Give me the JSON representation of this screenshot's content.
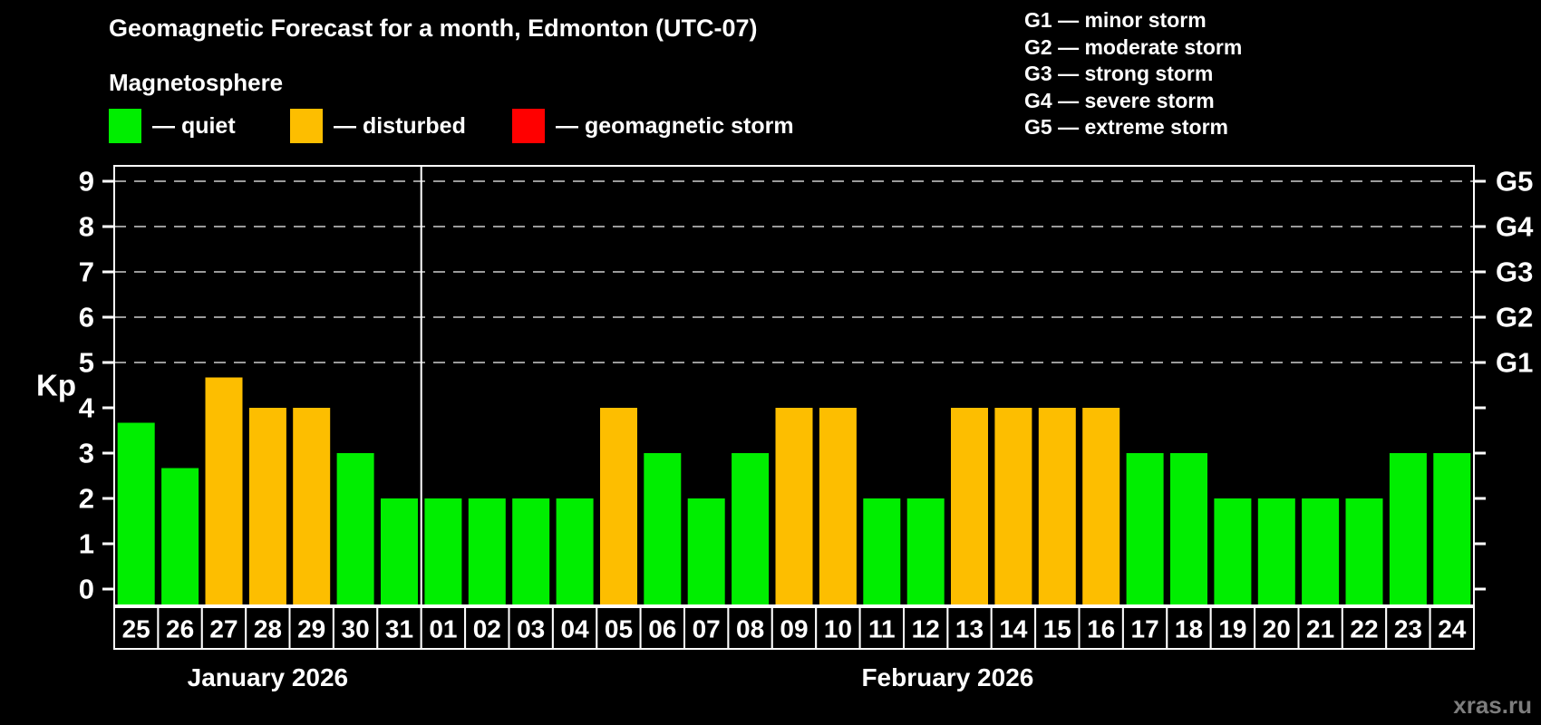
{
  "title": "Geomagnetic Forecast for a month, Edmonton (UTC-07)",
  "subtitle": "Magnetosphere",
  "legend": {
    "items": [
      {
        "name": "quiet",
        "label": "— quiet",
        "color": "#00EE00"
      },
      {
        "name": "disturbed",
        "label": "— disturbed",
        "color": "#FDBE00"
      },
      {
        "name": "storm",
        "label": "— geomagnetic storm",
        "color": "#FF0000"
      }
    ]
  },
  "g_scale_legend": {
    "lines": [
      "G1 — minor storm",
      "G2 — moderate storm",
      "G3 — strong storm",
      "G4 — severe storm",
      "G5 — extreme storm"
    ]
  },
  "watermark": "xras.ru",
  "chart_data": {
    "type": "bar",
    "title": "Geomagnetic Forecast for a month, Edmonton (UTC-07)",
    "ylabel": "Kp",
    "ylim": [
      -0.36,
      9.34
    ],
    "y_ticks": [
      0,
      1,
      2,
      3,
      4,
      5,
      6,
      7,
      8,
      9
    ],
    "grid": "horizontal dashed lines at Kp 5-9 only",
    "grid_levels": [
      5,
      6,
      7,
      8,
      9
    ],
    "legend_position": "top-left",
    "right_axis_labels": [
      {
        "kp": 5,
        "label": "G1"
      },
      {
        "kp": 6,
        "label": "G2"
      },
      {
        "kp": 7,
        "label": "G3"
      },
      {
        "kp": 8,
        "label": "G4"
      },
      {
        "kp": 9,
        "label": "G5"
      }
    ],
    "status_colors": {
      "quiet": "#00EE00",
      "disturbed": "#FDBE00",
      "storm": "#FF0000"
    },
    "months": [
      {
        "label": "January 2026",
        "days": 7
      },
      {
        "label": "February 2026",
        "days": 24
      }
    ],
    "bars": [
      {
        "month": "January",
        "day": "25",
        "kp": 3.67,
        "status": "quiet"
      },
      {
        "month": "January",
        "day": "26",
        "kp": 2.67,
        "status": "quiet"
      },
      {
        "month": "January",
        "day": "27",
        "kp": 4.67,
        "status": "disturbed"
      },
      {
        "month": "January",
        "day": "28",
        "kp": 4,
        "status": "disturbed"
      },
      {
        "month": "January",
        "day": "29",
        "kp": 4,
        "status": "disturbed"
      },
      {
        "month": "January",
        "day": "30",
        "kp": 3,
        "status": "quiet"
      },
      {
        "month": "January",
        "day": "31",
        "kp": 2,
        "status": "quiet"
      },
      {
        "month": "February",
        "day": "01",
        "kp": 2,
        "status": "quiet"
      },
      {
        "month": "February",
        "day": "02",
        "kp": 2,
        "status": "quiet"
      },
      {
        "month": "February",
        "day": "03",
        "kp": 2,
        "status": "quiet"
      },
      {
        "month": "February",
        "day": "04",
        "kp": 2,
        "status": "quiet"
      },
      {
        "month": "February",
        "day": "05",
        "kp": 4,
        "status": "disturbed"
      },
      {
        "month": "February",
        "day": "06",
        "kp": 3,
        "status": "quiet"
      },
      {
        "month": "February",
        "day": "07",
        "kp": 2,
        "status": "quiet"
      },
      {
        "month": "February",
        "day": "08",
        "kp": 3,
        "status": "quiet"
      },
      {
        "month": "February",
        "day": "09",
        "kp": 4,
        "status": "disturbed"
      },
      {
        "month": "February",
        "day": "10",
        "kp": 4,
        "status": "disturbed"
      },
      {
        "month": "February",
        "day": "11",
        "kp": 2,
        "status": "quiet"
      },
      {
        "month": "February",
        "day": "12",
        "kp": 2,
        "status": "quiet"
      },
      {
        "month": "February",
        "day": "13",
        "kp": 4,
        "status": "disturbed"
      },
      {
        "month": "February",
        "day": "14",
        "kp": 4,
        "status": "disturbed"
      },
      {
        "month": "February",
        "day": "15",
        "kp": 4,
        "status": "disturbed"
      },
      {
        "month": "February",
        "day": "16",
        "kp": 4,
        "status": "disturbed"
      },
      {
        "month": "February",
        "day": "17",
        "kp": 3,
        "status": "quiet"
      },
      {
        "month": "February",
        "day": "18",
        "kp": 3,
        "status": "quiet"
      },
      {
        "month": "February",
        "day": "19",
        "kp": 2,
        "status": "quiet"
      },
      {
        "month": "February",
        "day": "20",
        "kp": 2,
        "status": "quiet"
      },
      {
        "month": "February",
        "day": "21",
        "kp": 2,
        "status": "quiet"
      },
      {
        "month": "February",
        "day": "22",
        "kp": 2,
        "status": "quiet"
      },
      {
        "month": "February",
        "day": "23",
        "kp": 3,
        "status": "quiet"
      },
      {
        "month": "February",
        "day": "24",
        "kp": 3,
        "status": "quiet"
      }
    ]
  }
}
